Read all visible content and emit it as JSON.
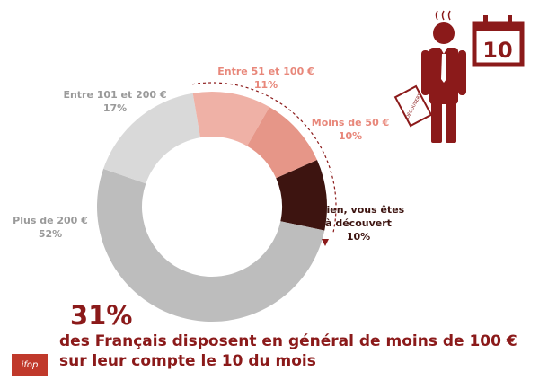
{
  "chart_data": {
    "type": "pie",
    "slices": [
      {
        "label": "Rien, vous êtes à découvert",
        "lines": [
          "Rien, vous êtes",
          "à découvert"
        ],
        "percent_text": "10%",
        "value": 10,
        "color": "#3D1410",
        "text_color": "#3D1410"
      },
      {
        "label": "Plus de 200 €",
        "lines": [
          "Plus de 200 €"
        ],
        "percent_text": "52%",
        "value": 52,
        "color": "#BDBDBD",
        "text_color": "#9A9A9A"
      },
      {
        "label": "Entre 101 et 200 €",
        "lines": [
          "Entre 101 et 200 €"
        ],
        "percent_text": "17%",
        "value": 17,
        "color": "#D9D9D9",
        "text_color": "#9A9A9A"
      },
      {
        "label": "Entre 51 et 100 €",
        "lines": [
          "Entre 51 et 100 €"
        ],
        "percent_text": "11%",
        "value": 11,
        "color": "#EFB1A6",
        "text_color": "#E8877A"
      },
      {
        "label": "Moins de 50 €",
        "lines": [
          "Moins de 50 €"
        ],
        "percent_text": "10%",
        "value": 10,
        "color": "#E69688",
        "text_color": "#E8877A"
      }
    ]
  },
  "highlight": {
    "stat": "31%",
    "line1": "des Français disposent en général de moins de 100 €",
    "line2": "sur leur compte le 10 du mois"
  },
  "illustration": {
    "document_text": "DÉCOUVERT",
    "calendar_day": "10",
    "color": "#8B1A1A"
  },
  "logo": {
    "text": "ifop"
  }
}
